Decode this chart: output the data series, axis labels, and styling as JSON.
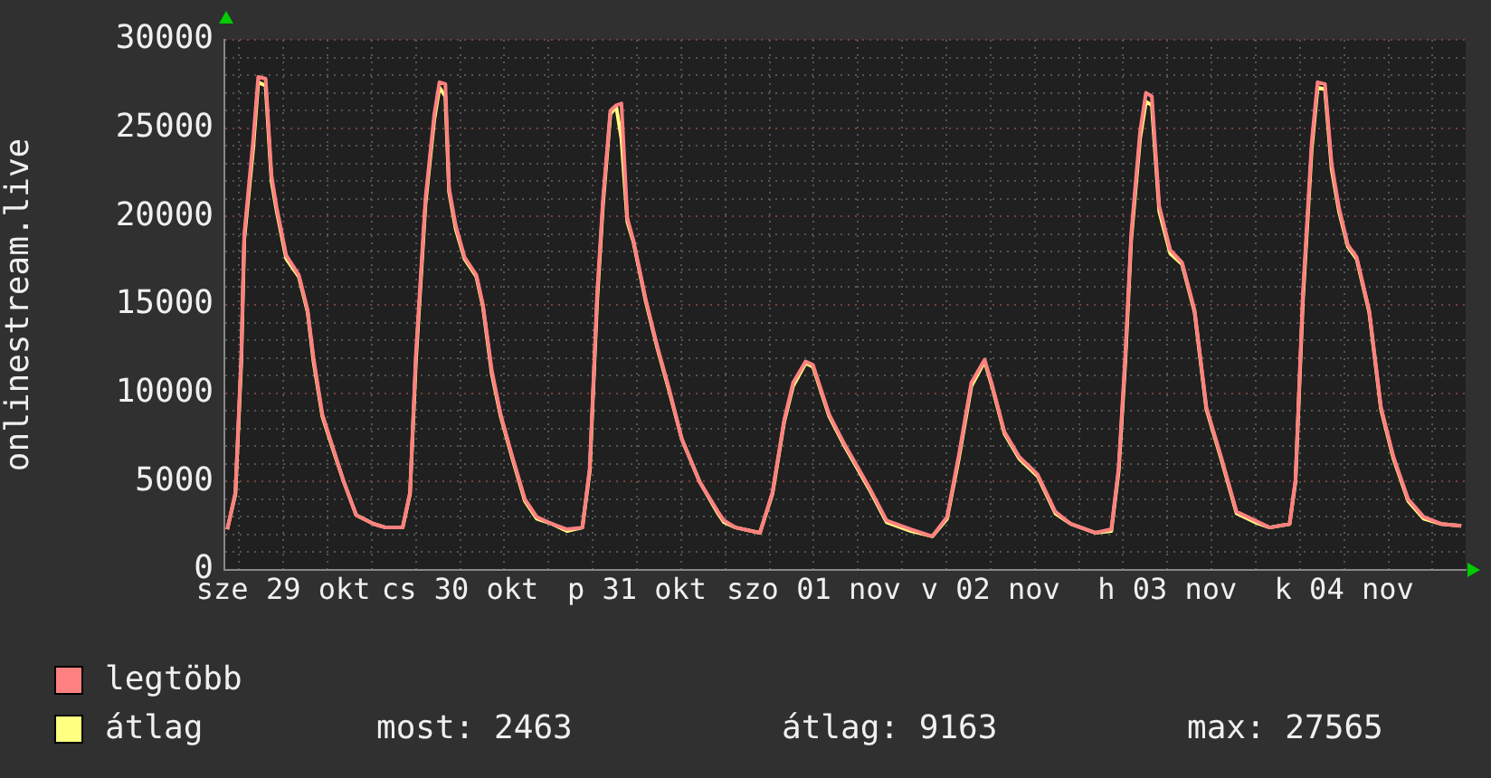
{
  "chart_data": {
    "type": "line",
    "ylabel": "onlinestream.live",
    "x": [
      "--10-28T16:24",
      "--10-28T17:30",
      "--10-28T18:18",
      "--10-28T18:42",
      "--10-28T19:54",
      "--10-28T20:36",
      "--10-28T21:36",
      "--10-28T22:24",
      "--10-28T23:06",
      "--10-29T00:24",
      "--10-29T02:06",
      "--10-29T03:18",
      "--10-29T04:06",
      "--10-29T05:18",
      "--10-29T06:36",
      "--10-29T08:12",
      "--10-29T09:54",
      "--10-29T12:18",
      "--10-29T13:54",
      "--10-29T16:12",
      "--10-29T17:12",
      "--10-29T18:00",
      "--10-29T19:18",
      "--10-29T20:30",
      "--10-29T21:12",
      "--10-29T22:00",
      "--10-29T22:30",
      "--10-29T23:24",
      "--10-30T00:36",
      "--10-30T02:12",
      "--10-30T03:06",
      "--10-30T04:18",
      "--10-30T05:30",
      "--10-30T07:06",
      "--10-30T08:48",
      "--10-30T10:24",
      "--10-30T12:30",
      "--10-30T14:30",
      "--10-30T16:36",
      "--10-30T17:36",
      "--10-30T18:36",
      "--10-30T19:24",
      "--10-30T20:24",
      "--10-30T21:12",
      "--10-30T21:54",
      "--10-30T22:42",
      "--10-30T23:30",
      "--10-31T01:12",
      "--10-31T02:48",
      "--10-31T04:24",
      "--10-31T06:06",
      "--10-31T08:30",
      "--10-31T11:00",
      "--10-31T11:48",
      "--10-31T13:24",
      "--10-31T16:42",
      "--10-31T18:24",
      "--10-31T20:00",
      "--10-31T21:12",
      "--10-31T22:54",
      "--10-31T23:54",
      "--11-01T02:06",
      "--11-01T04:12",
      "--11-01T07:30",
      "--11-01T09:54",
      "--11-01T13:12",
      "--11-01T16:06",
      "--11-01T18:06",
      "--11-01T19:42",
      "--11-01T21:24",
      "--11-01T23:12",
      "--11-02T00:12",
      "--11-02T01:54",
      "--11-02T03:54",
      "--11-02T06:24",
      "--11-02T08:48",
      "--11-02T10:54",
      "--11-02T14:12",
      "--11-02T16:24",
      "--11-02T17:24",
      "--11-02T18:18",
      "--11-02T19:06",
      "--11-02T20:18",
      "--11-02T21:06",
      "--11-02T21:54",
      "--11-02T22:54",
      "--11-03T00:24",
      "--11-03T02:00",
      "--11-03T03:42",
      "--11-03T05:18",
      "--11-03T07:18",
      "--11-03T09:24",
      "--11-03T11:54",
      "--11-03T13:54",
      "--11-03T16:36",
      "--11-03T17:24",
      "--11-03T18:24",
      "--11-03T19:36",
      "--11-03T20:24",
      "--11-03T21:24",
      "--11-03T22:18",
      "--11-03T23:18",
      "--11-04T00:30",
      "--11-04T01:42",
      "--11-04T03:24",
      "--11-04T05:00",
      "--11-04T06:42",
      "--11-04T08:42",
      "--11-04T10:48",
      "--11-04T13:12",
      "--11-04T15:54"
    ],
    "series": [
      {
        "name": "legtöbb",
        "color": "#ff8080",
        "values": [
          2300,
          4400,
          12200,
          19000,
          24300,
          27900,
          27800,
          22300,
          20500,
          17800,
          16700,
          14700,
          12000,
          8800,
          7100,
          5000,
          3100,
          2600,
          2400,
          2400,
          4400,
          12200,
          21000,
          25800,
          27600,
          27500,
          21600,
          19500,
          17700,
          16700,
          15000,
          11300,
          8800,
          6400,
          4000,
          3000,
          2600,
          2300,
          2400,
          5800,
          15600,
          21000,
          26000,
          26300,
          26400,
          19900,
          18700,
          15300,
          12600,
          10200,
          7400,
          5000,
          3300,
          2800,
          2400,
          2100,
          4400,
          8500,
          10600,
          11800,
          11600,
          8800,
          7100,
          4700,
          2800,
          2300,
          1900,
          3000,
          6500,
          10600,
          11900,
          10500,
          7800,
          6400,
          5400,
          3300,
          2600,
          2100,
          2300,
          5800,
          12200,
          19000,
          24800,
          27000,
          26800,
          20600,
          18100,
          17400,
          14700,
          9200,
          6400,
          3300,
          2800,
          2400,
          2600,
          5100,
          15600,
          24200,
          27600,
          27500,
          23000,
          20500,
          18400,
          17700,
          14700,
          9200,
          6400,
          4000,
          3000,
          2600,
          2500
        ]
      },
      {
        "name": "átlag",
        "color": "#ffff80",
        "values": [
          2300,
          4300,
          11800,
          18700,
          23800,
          27600,
          27400,
          22000,
          20300,
          17600,
          16600,
          14600,
          11800,
          8700,
          7000,
          5000,
          3100,
          2600,
          2400,
          2400,
          4300,
          11800,
          20700,
          25500,
          27300,
          26800,
          21400,
          19300,
          17600,
          16600,
          14900,
          11100,
          8700,
          6300,
          3900,
          2900,
          2600,
          2200,
          2400,
          5600,
          15200,
          20700,
          25800,
          26200,
          24400,
          19700,
          18600,
          15200,
          12500,
          10100,
          7400,
          5000,
          3200,
          2700,
          2400,
          2100,
          4300,
          8400,
          10400,
          11700,
          11500,
          8700,
          7000,
          4600,
          2700,
          2200,
          1900,
          2900,
          6300,
          10400,
          11800,
          10400,
          7700,
          6300,
          5300,
          3200,
          2600,
          2100,
          2200,
          5600,
          11800,
          18700,
          24400,
          26500,
          26300,
          20300,
          17900,
          17300,
          14600,
          9100,
          6300,
          3200,
          2700,
          2400,
          2600,
          5000,
          15200,
          23800,
          27300,
          27200,
          22700,
          20300,
          18300,
          17600,
          14600,
          9100,
          6300,
          3900,
          2900,
          2600,
          2500
        ]
      }
    ],
    "xlim": [
      "--10-28T16:00",
      "--11-04T16:30"
    ],
    "xticks": [
      {
        "value": "--10-28T18:00",
        "label": null
      },
      {
        "value": "--10-29T00:00",
        "label": "sze 29 okt"
      },
      {
        "value": "--10-29T06:00",
        "label": null
      },
      {
        "value": "--10-29T12:00",
        "label": null
      },
      {
        "value": "--10-29T18:00",
        "label": null
      },
      {
        "value": "--10-30T00:00",
        "label": "cs 30 okt"
      },
      {
        "value": "--10-30T06:00",
        "label": null
      },
      {
        "value": "--10-30T12:00",
        "label": null
      },
      {
        "value": "--10-30T18:00",
        "label": null
      },
      {
        "value": "--10-31T00:00",
        "label": "p 31 okt"
      },
      {
        "value": "--10-31T06:00",
        "label": null
      },
      {
        "value": "--10-31T12:00",
        "label": null
      },
      {
        "value": "--10-31T18:00",
        "label": null
      },
      {
        "value": "--11-01T00:00",
        "label": "szo 01 nov"
      },
      {
        "value": "--11-01T06:00",
        "label": null
      },
      {
        "value": "--11-01T12:00",
        "label": null
      },
      {
        "value": "--11-01T18:00",
        "label": null
      },
      {
        "value": "--11-02T00:00",
        "label": "v 02 nov"
      },
      {
        "value": "--11-02T06:00",
        "label": null
      },
      {
        "value": "--11-02T12:00",
        "label": null
      },
      {
        "value": "--11-02T18:00",
        "label": null
      },
      {
        "value": "--11-03T00:00",
        "label": "h 03 nov"
      },
      {
        "value": "--11-03T06:00",
        "label": null
      },
      {
        "value": "--11-03T12:00",
        "label": null
      },
      {
        "value": "--11-03T18:00",
        "label": null
      },
      {
        "value": "--11-04T00:00",
        "label": "k 04 nov"
      },
      {
        "value": "--11-04T06:00",
        "label": null
      },
      {
        "value": "--11-04T12:00",
        "label": null
      }
    ],
    "ylim": [
      0,
      30000
    ],
    "yticks": [
      0,
      {
        "value": 1000,
        "label": null
      },
      {
        "value": 2000,
        "label": null
      },
      {
        "value": 3000,
        "label": null
      },
      {
        "value": 4000,
        "label": null
      },
      5000,
      {
        "value": 6000,
        "label": null
      },
      {
        "value": 7000,
        "label": null
      },
      {
        "value": 8000,
        "label": null
      },
      {
        "value": 9000,
        "label": null
      },
      10000,
      {
        "value": 11000,
        "label": null
      },
      {
        "value": 12000,
        "label": null
      },
      {
        "value": 13000,
        "label": null
      },
      {
        "value": 14000,
        "label": null
      },
      15000,
      {
        "value": 16000,
        "label": null
      },
      {
        "value": 17000,
        "label": null
      },
      {
        "value": 18000,
        "label": null
      },
      {
        "value": 19000,
        "label": null
      },
      20000,
      {
        "value": 21000,
        "label": null
      },
      {
        "value": 22000,
        "label": null
      },
      {
        "value": 23000,
        "label": null
      },
      {
        "value": 24000,
        "label": null
      },
      25000,
      {
        "value": 26000,
        "label": null
      },
      {
        "value": 27000,
        "label": null
      },
      {
        "value": 28000,
        "label": null
      },
      {
        "value": 29000,
        "label": null
      },
      30000
    ],
    "grid": true,
    "legend": "bottom",
    "marker": "none",
    "line_style": "solid",
    "annotations": [
      "most: 2463",
      "átlag: 9163",
      "max: 27565"
    ]
  }
}
